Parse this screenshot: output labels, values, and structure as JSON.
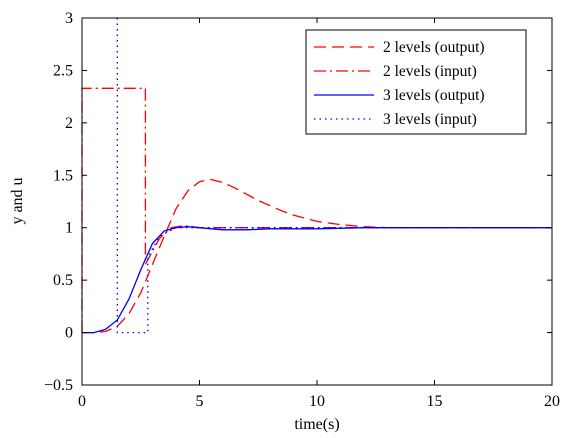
{
  "chart_data": {
    "type": "line",
    "title": "",
    "xlabel": "time(s)",
    "ylabel": "y and u",
    "xlim": [
      0,
      20
    ],
    "ylim": [
      -0.5,
      3
    ],
    "xticks": [
      0,
      5,
      10,
      15,
      20
    ],
    "xtick_labels": [
      "0",
      "5",
      "10",
      "15",
      "20"
    ],
    "yticks": [
      -0.5,
      0,
      0.5,
      1,
      1.5,
      2,
      2.5,
      3
    ],
    "ytick_labels": [
      "−0.5",
      "0",
      "0.5",
      "1",
      "1.5",
      "2",
      "2.5",
      "3"
    ],
    "grid": false,
    "legend_position": "top-right",
    "series": [
      {
        "name": "2 levels (output)",
        "color": "#ff0000",
        "line_style": "dashed",
        "x": [
          0,
          0.5,
          1,
          1.5,
          2,
          2.5,
          3,
          3.5,
          4,
          4.5,
          5,
          5.5,
          6,
          6.5,
          7,
          7.5,
          8,
          8.5,
          9,
          9.5,
          10,
          11,
          12,
          13,
          14,
          15,
          16,
          17,
          18,
          19,
          20
        ],
        "y": [
          0,
          0,
          0.01,
          0.06,
          0.18,
          0.38,
          0.65,
          0.92,
          1.18,
          1.35,
          1.44,
          1.46,
          1.43,
          1.38,
          1.32,
          1.26,
          1.21,
          1.16,
          1.12,
          1.09,
          1.06,
          1.03,
          1.01,
          1.0,
          1.0,
          1.0,
          1.0,
          1.0,
          1.0,
          1.0,
          1.0
        ]
      },
      {
        "name": "2 levels (input)",
        "color": "#ff0000",
        "line_style": "dashdot",
        "x": [
          0,
          0,
          2.7,
          2.7,
          3.3,
          3.8,
          4.3,
          5,
          20
        ],
        "y": [
          0,
          2.33,
          2.33,
          0.65,
          0.9,
          1.0,
          1.02,
          1.0,
          1.0
        ]
      },
      {
        "name": "3 levels (output)",
        "color": "#0000ff",
        "line_style": "solid",
        "x": [
          0,
          0.5,
          1,
          1.5,
          2,
          2.5,
          3,
          3.5,
          4,
          4.5,
          5,
          5.5,
          6,
          7,
          8,
          9,
          10,
          12,
          14,
          16,
          18,
          20
        ],
        "y": [
          0,
          0,
          0.03,
          0.12,
          0.32,
          0.6,
          0.85,
          0.97,
          1.0,
          1.01,
          1.0,
          0.99,
          0.98,
          0.98,
          0.99,
          0.99,
          0.99,
          1.0,
          1.0,
          1.0,
          1.0,
          1.0
        ]
      },
      {
        "name": "3 levels (input)",
        "color": "#0000ff",
        "line_style": "dotted",
        "x": [
          1.5,
          1.5,
          2.8,
          2.8,
          3.3,
          4.0,
          4.5,
          5,
          20
        ],
        "y": [
          3.0,
          0,
          0,
          0.72,
          0.92,
          1.0,
          1.0,
          1.0,
          1.0
        ]
      }
    ]
  }
}
